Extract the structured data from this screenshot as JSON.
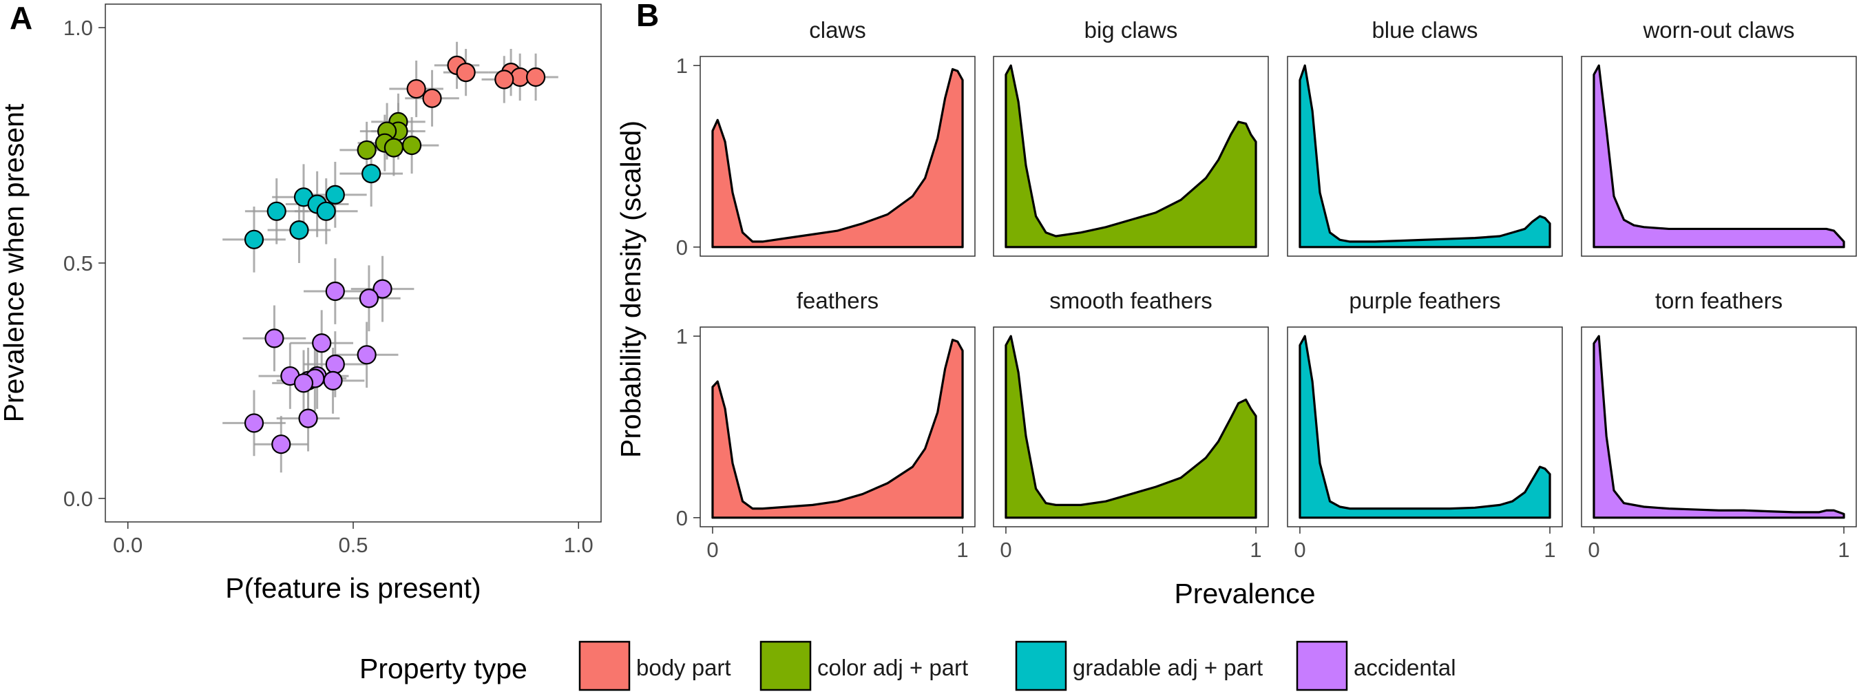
{
  "panel_labels": [
    "A",
    "B"
  ],
  "colors": {
    "body part": "#F8766D",
    "color adj + part": "#7CAE00",
    "gradable adj + part": "#00BFC4",
    "accidental": "#C77CFF",
    "error_bars": "#9a9a9a",
    "outline": "#000000"
  },
  "legend": {
    "title": "Property type",
    "entries": [
      "body part",
      "color adj + part",
      "gradable adj + part",
      "accidental"
    ]
  },
  "chart_data": [
    {
      "type": "scatter",
      "panel": "A",
      "xlabel": "P(feature is present)",
      "ylabel": "Prevalence when present",
      "xlim": [
        -0.05,
        1.05
      ],
      "ylim": [
        -0.05,
        1.05
      ],
      "xticks": [
        "0.0",
        "0.5",
        "1.0"
      ],
      "yticks": [
        "0.0",
        "0.5",
        "1.0"
      ],
      "grid": false,
      "points": [
        {
          "x": 0.73,
          "y": 0.92,
          "xerr": 0.05,
          "yerr": 0.05,
          "type": "body part"
        },
        {
          "x": 0.75,
          "y": 0.905,
          "xerr": 0.05,
          "yerr": 0.05,
          "type": "body part"
        },
        {
          "x": 0.85,
          "y": 0.905,
          "xerr": 0.05,
          "yerr": 0.05,
          "type": "body part"
        },
        {
          "x": 0.87,
          "y": 0.895,
          "xerr": 0.05,
          "yerr": 0.05,
          "type": "body part"
        },
        {
          "x": 0.835,
          "y": 0.89,
          "xerr": 0.05,
          "yerr": 0.05,
          "type": "body part"
        },
        {
          "x": 0.905,
          "y": 0.895,
          "xerr": 0.05,
          "yerr": 0.05,
          "type": "body part"
        },
        {
          "x": 0.64,
          "y": 0.87,
          "xerr": 0.06,
          "yerr": 0.06,
          "type": "body part"
        },
        {
          "x": 0.675,
          "y": 0.85,
          "xerr": 0.06,
          "yerr": 0.06,
          "type": "body part"
        },
        {
          "x": 0.6,
          "y": 0.8,
          "xerr": 0.06,
          "yerr": 0.06,
          "type": "color adj + part"
        },
        {
          "x": 0.6,
          "y": 0.78,
          "xerr": 0.06,
          "yerr": 0.06,
          "type": "color adj + part"
        },
        {
          "x": 0.575,
          "y": 0.78,
          "xerr": 0.06,
          "yerr": 0.06,
          "type": "color adj + part"
        },
        {
          "x": 0.57,
          "y": 0.755,
          "xerr": 0.06,
          "yerr": 0.06,
          "type": "color adj + part"
        },
        {
          "x": 0.59,
          "y": 0.745,
          "xerr": 0.06,
          "yerr": 0.06,
          "type": "color adj + part"
        },
        {
          "x": 0.63,
          "y": 0.75,
          "xerr": 0.06,
          "yerr": 0.06,
          "type": "color adj + part"
        },
        {
          "x": 0.53,
          "y": 0.74,
          "xerr": 0.06,
          "yerr": 0.06,
          "type": "color adj + part"
        },
        {
          "x": 0.54,
          "y": 0.69,
          "xerr": 0.07,
          "yerr": 0.07,
          "type": "gradable adj + part"
        },
        {
          "x": 0.46,
          "y": 0.645,
          "xerr": 0.07,
          "yerr": 0.07,
          "type": "gradable adj + part"
        },
        {
          "x": 0.39,
          "y": 0.64,
          "xerr": 0.07,
          "yerr": 0.07,
          "type": "gradable adj + part"
        },
        {
          "x": 0.42,
          "y": 0.625,
          "xerr": 0.07,
          "yerr": 0.07,
          "type": "gradable adj + part"
        },
        {
          "x": 0.44,
          "y": 0.61,
          "xerr": 0.07,
          "yerr": 0.07,
          "type": "gradable adj + part"
        },
        {
          "x": 0.33,
          "y": 0.61,
          "xerr": 0.07,
          "yerr": 0.07,
          "type": "gradable adj + part"
        },
        {
          "x": 0.38,
          "y": 0.57,
          "xerr": 0.07,
          "yerr": 0.07,
          "type": "gradable adj + part"
        },
        {
          "x": 0.28,
          "y": 0.55,
          "xerr": 0.07,
          "yerr": 0.07,
          "type": "gradable adj + part"
        },
        {
          "x": 0.565,
          "y": 0.445,
          "xerr": 0.07,
          "yerr": 0.07,
          "type": "accidental"
        },
        {
          "x": 0.46,
          "y": 0.44,
          "xerr": 0.07,
          "yerr": 0.07,
          "type": "accidental"
        },
        {
          "x": 0.535,
          "y": 0.425,
          "xerr": 0.07,
          "yerr": 0.07,
          "type": "accidental"
        },
        {
          "x": 0.325,
          "y": 0.34,
          "xerr": 0.07,
          "yerr": 0.07,
          "type": "accidental"
        },
        {
          "x": 0.43,
          "y": 0.33,
          "xerr": 0.07,
          "yerr": 0.07,
          "type": "accidental"
        },
        {
          "x": 0.53,
          "y": 0.305,
          "xerr": 0.07,
          "yerr": 0.07,
          "type": "accidental"
        },
        {
          "x": 0.46,
          "y": 0.285,
          "xerr": 0.07,
          "yerr": 0.07,
          "type": "accidental"
        },
        {
          "x": 0.36,
          "y": 0.26,
          "xerr": 0.07,
          "yerr": 0.07,
          "type": "accidental"
        },
        {
          "x": 0.42,
          "y": 0.26,
          "xerr": 0.07,
          "yerr": 0.07,
          "type": "accidental"
        },
        {
          "x": 0.4,
          "y": 0.25,
          "xerr": 0.07,
          "yerr": 0.07,
          "type": "accidental"
        },
        {
          "x": 0.455,
          "y": 0.25,
          "xerr": 0.07,
          "yerr": 0.07,
          "type": "accidental"
        },
        {
          "x": 0.415,
          "y": 0.255,
          "xerr": 0.07,
          "yerr": 0.07,
          "type": "accidental"
        },
        {
          "x": 0.39,
          "y": 0.245,
          "xerr": 0.07,
          "yerr": 0.07,
          "type": "accidental"
        },
        {
          "x": 0.4,
          "y": 0.17,
          "xerr": 0.07,
          "yerr": 0.07,
          "type": "accidental"
        },
        {
          "x": 0.28,
          "y": 0.16,
          "xerr": 0.07,
          "yerr": 0.07,
          "type": "accidental"
        },
        {
          "x": 0.34,
          "y": 0.115,
          "xerr": 0.06,
          "yerr": 0.06,
          "type": "accidental"
        }
      ]
    },
    {
      "type": "area",
      "panel": "B",
      "xlabel": "Prevalence",
      "ylabel": "Probability density (scaled)",
      "xlim": [
        0,
        1
      ],
      "ylim": [
        0,
        1
      ],
      "xticks": [
        "0",
        "1"
      ],
      "yticks": [
        "0",
        "1"
      ],
      "x": [
        0,
        0.02,
        0.05,
        0.08,
        0.12,
        0.16,
        0.2,
        0.3,
        0.4,
        0.5,
        0.6,
        0.7,
        0.8,
        0.85,
        0.9,
        0.93,
        0.96,
        0.98,
        1.0
      ],
      "facets": [
        {
          "name": "claws",
          "type": "body part",
          "row": 0,
          "col": 0,
          "values": [
            0.64,
            0.7,
            0.58,
            0.3,
            0.08,
            0.03,
            0.03,
            0.05,
            0.07,
            0.09,
            0.13,
            0.18,
            0.28,
            0.38,
            0.6,
            0.82,
            0.98,
            0.97,
            0.92
          ]
        },
        {
          "name": "big claws",
          "type": "color adj + part",
          "row": 0,
          "col": 1,
          "values": [
            0.95,
            1.0,
            0.8,
            0.45,
            0.17,
            0.08,
            0.06,
            0.08,
            0.11,
            0.15,
            0.19,
            0.26,
            0.38,
            0.48,
            0.62,
            0.69,
            0.68,
            0.62,
            0.58
          ]
        },
        {
          "name": "blue claws",
          "type": "gradable adj + part",
          "row": 0,
          "col": 2,
          "values": [
            0.92,
            1.0,
            0.75,
            0.3,
            0.08,
            0.04,
            0.03,
            0.03,
            0.035,
            0.04,
            0.045,
            0.05,
            0.06,
            0.08,
            0.1,
            0.14,
            0.17,
            0.16,
            0.13
          ]
        },
        {
          "name": "worn-out claws",
          "type": "accidental",
          "row": 0,
          "col": 3,
          "values": [
            0.95,
            1.0,
            0.65,
            0.28,
            0.15,
            0.12,
            0.11,
            0.1,
            0.1,
            0.1,
            0.1,
            0.1,
            0.1,
            0.1,
            0.1,
            0.1,
            0.09,
            0.06,
            0.03
          ]
        },
        {
          "name": "feathers",
          "type": "body part",
          "row": 1,
          "col": 0,
          "values": [
            0.72,
            0.75,
            0.6,
            0.3,
            0.09,
            0.05,
            0.05,
            0.06,
            0.07,
            0.09,
            0.13,
            0.19,
            0.28,
            0.38,
            0.58,
            0.82,
            0.98,
            0.97,
            0.92
          ]
        },
        {
          "name": "smooth feathers",
          "type": "color adj + part",
          "row": 1,
          "col": 1,
          "values": [
            0.95,
            1.0,
            0.8,
            0.45,
            0.16,
            0.08,
            0.07,
            0.07,
            0.09,
            0.13,
            0.17,
            0.22,
            0.33,
            0.42,
            0.55,
            0.63,
            0.65,
            0.6,
            0.56
          ]
        },
        {
          "name": "purple feathers",
          "type": "gradable adj + part",
          "row": 1,
          "col": 2,
          "values": [
            0.95,
            1.0,
            0.75,
            0.3,
            0.09,
            0.06,
            0.05,
            0.05,
            0.05,
            0.05,
            0.05,
            0.055,
            0.07,
            0.09,
            0.14,
            0.21,
            0.28,
            0.27,
            0.24
          ]
        },
        {
          "name": "torn feathers",
          "type": "accidental",
          "row": 1,
          "col": 3,
          "values": [
            0.96,
            1.0,
            0.45,
            0.15,
            0.08,
            0.07,
            0.06,
            0.05,
            0.045,
            0.04,
            0.04,
            0.035,
            0.03,
            0.03,
            0.03,
            0.04,
            0.04,
            0.03,
            0.02
          ]
        }
      ]
    }
  ]
}
